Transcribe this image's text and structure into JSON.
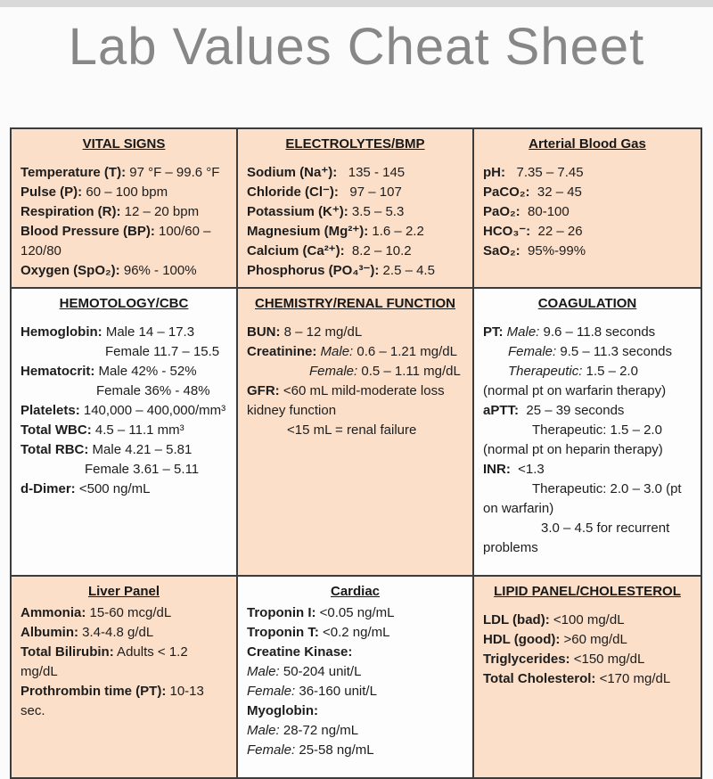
{
  "page": {
    "title": "Lab Values Cheat Sheet"
  },
  "table": {
    "colors": {
      "cell_peach": "#fbdfc9",
      "cell_white": "#fdfdfd",
      "border": "#3c3c3c",
      "title_gray": "#878787"
    },
    "cells": [
      {
        "id": "vital-signs",
        "header": "VITAL SIGNS",
        "bg": "peach",
        "lines": [
          {
            "seg": [
              {
                "t": "Temperature (T):",
                "b": true
              },
              {
                "t": " 97 °F – 99.6 °F"
              }
            ]
          },
          {
            "seg": [
              {
                "t": "Pulse (P):",
                "b": true
              },
              {
                "t": " 60 – 100 bpm"
              }
            ]
          },
          {
            "seg": [
              {
                "t": "Respiration (R):",
                "b": true
              },
              {
                "t": " 12 – 20 bpm"
              }
            ]
          },
          {
            "seg": [
              {
                "t": "Blood Pressure (BP):",
                "b": true
              },
              {
                "t": " 100/60 –"
              }
            ]
          },
          {
            "seg": [
              {
                "t": "120/80"
              }
            ]
          },
          {
            "seg": [
              {
                "t": "Oxygen (SpO₂):",
                "b": true
              },
              {
                "t": " 96% - 100%"
              }
            ]
          }
        ]
      },
      {
        "id": "electrolytes-bmp",
        "header": "ELECTROLYTES/BMP",
        "bg": "peach",
        "lines": [
          {
            "seg": [
              {
                "t": "Sodium (Na⁺):",
                "b": true
              },
              {
                "t": "   135 - 145"
              }
            ]
          },
          {
            "seg": [
              {
                "t": "Chloride (Cl⁻):",
                "b": true
              },
              {
                "t": "   97 – 107"
              }
            ]
          },
          {
            "seg": [
              {
                "t": "Potassium (K⁺):",
                "b": true
              },
              {
                "t": " 3.5 – 5.3"
              }
            ]
          },
          {
            "seg": [
              {
                "t": "Magnesium (Mg²⁺):",
                "b": true
              },
              {
                "t": " 1.6 – 2.2"
              }
            ]
          },
          {
            "seg": [
              {
                "t": "Calcium (Ca²⁺):",
                "b": true
              },
              {
                "t": "  8.2 – 10.2"
              }
            ]
          },
          {
            "seg": [
              {
                "t": "Phosphorus (PO₄³⁻):",
                "b": true
              },
              {
                "t": " 2.5 – 4.5"
              }
            ]
          }
        ]
      },
      {
        "id": "arterial-blood-gas",
        "header": "Arterial Blood Gas",
        "bg": "peach",
        "lines": [
          {
            "seg": [
              {
                "t": "pH:",
                "b": true
              },
              {
                "t": "   7.35 – 7.45"
              }
            ]
          },
          {
            "seg": [
              {
                "t": "PaCO₂:",
                "b": true
              },
              {
                "t": "  32 – 45"
              }
            ]
          },
          {
            "seg": [
              {
                "t": "PaO₂:",
                "b": true
              },
              {
                "t": "  80-100"
              }
            ]
          },
          {
            "seg": [
              {
                "t": "HCO₃⁻:",
                "b": true
              },
              {
                "t": "  22 – 26"
              }
            ]
          },
          {
            "seg": [
              {
                "t": "SaO₂:",
                "b": true
              },
              {
                "t": "  95%-99%"
              }
            ]
          }
        ]
      },
      {
        "id": "hematology-cbc",
        "header": "HEMOTOLOGY/CBC",
        "bg": "white",
        "lines": [
          {
            "seg": [
              {
                "t": "Hemoglobin:",
                "b": true
              },
              {
                "t": " Male 14 – 17.3"
              }
            ]
          },
          {
            "ind": 95,
            "seg": [
              {
                "t": "Female 11.7 – 15.5"
              }
            ]
          },
          {
            "seg": [
              {
                "t": "Hematocrit:",
                "b": true
              },
              {
                "t": " Male 42% - 52%"
              }
            ]
          },
          {
            "ind": 85,
            "seg": [
              {
                "t": "Female 36% - 48%"
              }
            ]
          },
          {
            "seg": [
              {
                "t": "Platelets:",
                "b": true
              },
              {
                "t": " 140,000 – 400,000/mm³"
              }
            ]
          },
          {
            "seg": [
              {
                "t": "Total WBC:",
                "b": true
              },
              {
                "t": " 4.5 – 11.1 mm³"
              }
            ]
          },
          {
            "seg": [
              {
                "t": "Total RBC:",
                "b": true
              },
              {
                "t": " Male 4.21 – 5.81"
              }
            ]
          },
          {
            "ind": 72,
            "seg": [
              {
                "t": "Female 3.61 – 5.11"
              }
            ]
          },
          {
            "seg": [
              {
                "t": "d-Dimer:",
                "b": true
              },
              {
                "t": " <500 ng/mL"
              }
            ]
          }
        ]
      },
      {
        "id": "chemistry-renal-function",
        "header": "CHEMISTRY/RENAL FUNCTION",
        "bg": "peach",
        "lines": [
          {
            "seg": [
              {
                "t": "BUN:",
                "b": true
              },
              {
                "t": " 8 – 12 mg/dL"
              }
            ]
          },
          {
            "seg": [
              {
                "t": "Creatinine:",
                "b": true
              },
              {
                "t": " "
              },
              {
                "t": "Male:",
                "i": true
              },
              {
                "t": " 0.6 – 1.21 mg/dL"
              }
            ]
          },
          {
            "ind": 70,
            "seg": [
              {
                "t": "Female:",
                "i": true
              },
              {
                "t": " 0.5 – 1.11 mg/dL"
              }
            ]
          },
          {
            "seg": [
              {
                "t": "GFR:",
                "b": true
              },
              {
                "t": " <60 mL mild-moderate loss"
              }
            ]
          },
          {
            "seg": [
              {
                "t": "kidney function"
              }
            ]
          },
          {
            "ind": 45,
            "seg": [
              {
                "t": "<15 mL = renal failure"
              }
            ]
          }
        ]
      },
      {
        "id": "coagulation",
        "header": "COAGULATION",
        "bg": "white",
        "lines": [
          {
            "seg": [
              {
                "t": "PT: ",
                "b": true
              },
              {
                "t": "Male:",
                "i": true
              },
              {
                "t": " 9.6 – 11.8 seconds"
              }
            ]
          },
          {
            "ind": 28,
            "seg": [
              {
                "t": "Female:",
                "i": true
              },
              {
                "t": " 9.5 – 11.3 seconds"
              }
            ]
          },
          {
            "ind": 28,
            "seg": [
              {
                "t": "Therapeutic:",
                "i": true
              },
              {
                "t": " 1.5 – 2.0"
              }
            ]
          },
          {
            "seg": [
              {
                "t": "(normal pt on warfarin therapy)"
              }
            ]
          },
          {
            "seg": [
              {
                "t": "aPTT:",
                "b": true
              },
              {
                "t": "  25 – 39 seconds"
              }
            ]
          },
          {
            "ind": 55,
            "seg": [
              {
                "t": "Therapeutic: 1.5 – 2.0"
              }
            ]
          },
          {
            "seg": [
              {
                "t": "(normal pt on heparin therapy)"
              }
            ]
          },
          {
            "seg": [
              {
                "t": "INR:",
                "b": true
              },
              {
                "t": "  <1.3"
              }
            ]
          },
          {
            "ind": 55,
            "seg": [
              {
                "t": "Therapeutic: 2.0 – 3.0 (pt"
              }
            ]
          },
          {
            "seg": [
              {
                "t": "on warfarin)"
              }
            ]
          },
          {
            "ind": 65,
            "seg": [
              {
                "t": "3.0 – 4.5 for recurrent"
              }
            ]
          },
          {
            "seg": [
              {
                "t": "problems"
              }
            ]
          }
        ]
      },
      {
        "id": "liver-panel",
        "header": "Liver Panel",
        "bg": "peach",
        "tight": true,
        "lines": [
          {
            "seg": [
              {
                "t": "Ammonia:",
                "b": true
              },
              {
                "t": " 15-60 mcg/dL"
              }
            ]
          },
          {
            "seg": [
              {
                "t": "Albumin:",
                "b": true
              },
              {
                "t": " 3.4-4.8 g/dL"
              }
            ]
          },
          {
            "seg": [
              {
                "t": "Total Bilirubin:",
                "b": true
              },
              {
                "t": " Adults < 1.2 mg/dL"
              }
            ]
          },
          {
            "seg": [
              {
                "t": "Prothrombin time (PT):",
                "b": true
              },
              {
                "t": " 10-13 sec."
              }
            ]
          }
        ]
      },
      {
        "id": "cardiac",
        "header": "Cardiac",
        "bg": "white",
        "tight": true,
        "lines": [
          {
            "seg": [
              {
                "t": "Troponin I:",
                "b": true
              },
              {
                "t": " <0.05 ng/mL"
              }
            ]
          },
          {
            "seg": [
              {
                "t": "Troponin T:",
                "b": true
              },
              {
                "t": " <0.2 ng/mL"
              }
            ]
          },
          {
            "seg": [
              {
                "t": "Creatine Kinase:",
                "b": true
              }
            ]
          },
          {
            "seg": [
              {
                "t": "Male:",
                "i": true
              },
              {
                "t": " 50-204 unit/L"
              }
            ]
          },
          {
            "seg": [
              {
                "t": "Female:",
                "i": true
              },
              {
                "t": " 36-160 unit/L"
              }
            ]
          },
          {
            "seg": [
              {
                "t": "Myoglobin:",
                "b": true
              }
            ]
          },
          {
            "seg": [
              {
                "t": "Male:",
                "i": true
              },
              {
                "t": " 28-72 ng/mL"
              }
            ]
          },
          {
            "seg": [
              {
                "t": "Female:",
                "i": true
              },
              {
                "t": " 25-58 ng/mL"
              }
            ]
          }
        ]
      },
      {
        "id": "lipid-panel-cholesterol",
        "header": "LIPID PANEL/CHOLESTEROL",
        "bg": "peach",
        "lines": [
          {
            "seg": [
              {
                "t": "LDL (bad):",
                "b": true
              },
              {
                "t": " <100 mg/dL"
              }
            ]
          },
          {
            "seg": [
              {
                "t": "HDL (good):",
                "b": true
              },
              {
                "t": " >60 mg/dL"
              }
            ]
          },
          {
            "seg": [
              {
                "t": "Triglycerides:",
                "b": true
              },
              {
                "t": " <150 mg/dL"
              }
            ]
          },
          {
            "seg": [
              {
                "t": "Total Cholesterol:",
                "b": true
              },
              {
                "t": " <170 mg/dL"
              }
            ]
          }
        ]
      }
    ]
  }
}
